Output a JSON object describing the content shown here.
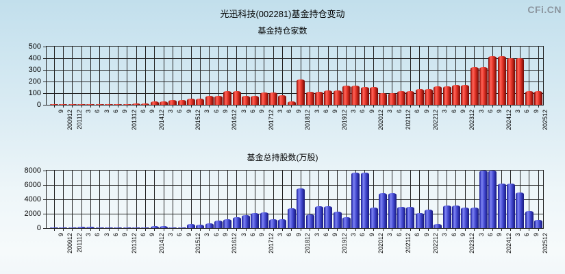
{
  "header": {
    "title": "光迅科技(002281)基金持仓变动",
    "watermark": "CFi.CN"
  },
  "colors": {
    "bar_red": "#e02c20",
    "bar_blue": "#3c42d8",
    "background_top": "#c2dfec",
    "grid": "#222222",
    "watermark_gray": "#8b959e"
  },
  "chart_data": [
    {
      "type": "bar",
      "title": "基金持仓家数",
      "bar_color": "red",
      "ylim": [
        0,
        500
      ],
      "yticks": [
        0,
        100,
        200,
        300,
        400,
        500
      ],
      "grid": true,
      "legend_position": "none",
      "xlabel": "",
      "ylabel": "",
      "tick_labels": [
        "9",
        "200912",
        "201112",
        "3",
        "6",
        "3",
        "6",
        "9",
        "201312",
        "6",
        "9",
        "201412",
        "3",
        "6",
        "9",
        "201512",
        "3",
        "6",
        "9",
        "201612",
        "3",
        "6",
        "9",
        "201712",
        "3",
        "6",
        "9",
        "201812",
        "3",
        "6",
        "9",
        "201912",
        "3",
        "6",
        "9",
        "202012",
        "3",
        "6",
        "202112",
        "6",
        "9",
        "202212",
        "3",
        "6",
        "9",
        "202312",
        "3",
        "6",
        "9",
        "202412",
        "3",
        "6",
        "9",
        "202512"
      ],
      "periods": [
        "200909",
        "200912",
        "201112",
        "201203",
        "201206",
        "201303",
        "201306",
        "201309",
        "201312",
        "201406",
        "201409",
        "201412",
        "201503",
        "201506",
        "201509",
        "201512",
        "201603",
        "201606",
        "201609",
        "201612",
        "201703",
        "201706",
        "201709",
        "201712",
        "201803",
        "201806",
        "201809",
        "201812",
        "201903",
        "201906",
        "201909",
        "201912",
        "202003",
        "202006",
        "202009",
        "202012",
        "202103",
        "202106",
        "202112",
        "202206",
        "202209",
        "202212",
        "202303",
        "202306",
        "202309",
        "202312",
        "202403",
        "202406",
        "202409",
        "202412",
        "202503",
        "202506",
        "202509",
        "202512"
      ],
      "values": [
        5,
        5,
        2,
        2,
        2,
        2,
        2,
        2,
        4,
        10,
        10,
        28,
        28,
        44,
        44,
        54,
        54,
        77,
        77,
        118,
        118,
        79,
        79,
        104,
        104,
        80,
        30,
        220,
        113,
        113,
        125,
        125,
        163,
        163,
        154,
        154,
        102,
        102,
        115,
        115,
        137,
        137,
        158,
        158,
        171,
        171,
        321,
        321,
        415,
        415,
        400,
        400,
        119,
        119
      ]
    },
    {
      "type": "bar",
      "title": "基金总持股数(万股)",
      "bar_color": "blue",
      "ylim": [
        0,
        8000
      ],
      "yticks": [
        0,
        2000,
        4000,
        6000,
        8000
      ],
      "grid": true,
      "legend_position": "none",
      "xlabel": "",
      "ylabel": "",
      "tick_labels": [
        "9",
        "200912",
        "201112",
        "3",
        "6",
        "3",
        "6",
        "9",
        "201312",
        "6",
        "9",
        "201412",
        "3",
        "6",
        "9",
        "201512",
        "3",
        "6",
        "9",
        "201612",
        "3",
        "6",
        "9",
        "201712",
        "3",
        "6",
        "9",
        "201812",
        "3",
        "6",
        "9",
        "201912",
        "3",
        "6",
        "9",
        "202012",
        "3",
        "6",
        "202112",
        "6",
        "9",
        "202212",
        "3",
        "6",
        "9",
        "202312",
        "3",
        "6",
        "9",
        "202412",
        "3",
        "6",
        "9",
        "202512"
      ],
      "periods": [
        "200909",
        "200912",
        "201112",
        "201203",
        "201206",
        "201303",
        "201306",
        "201309",
        "201312",
        "201406",
        "201409",
        "201412",
        "201503",
        "201506",
        "201509",
        "201512",
        "201603",
        "201606",
        "201609",
        "201612",
        "201703",
        "201706",
        "201709",
        "201712",
        "201803",
        "201806",
        "201809",
        "201812",
        "201903",
        "201906",
        "201909",
        "201912",
        "202003",
        "202006",
        "202009",
        "202012",
        "202103",
        "202106",
        "202112",
        "202206",
        "202209",
        "202212",
        "202303",
        "202306",
        "202309",
        "202312",
        "202403",
        "202406",
        "202409",
        "202412",
        "202503",
        "202506",
        "202509",
        "202512"
      ],
      "values": [
        60,
        60,
        60,
        230,
        230,
        60,
        60,
        60,
        60,
        100,
        100,
        250,
        250,
        120,
        120,
        550,
        460,
        640,
        1000,
        1250,
        1550,
        1800,
        2100,
        2150,
        1250,
        1230,
        2800,
        5500,
        1950,
        3000,
        3050,
        2330,
        1550,
        7700,
        7750,
        2900,
        4850,
        4850,
        2950,
        2950,
        2100,
        2590,
        600,
        3100,
        3100,
        2870,
        2870,
        7980,
        7980,
        6200,
        6200,
        4960,
        2400,
        1100
      ]
    }
  ]
}
